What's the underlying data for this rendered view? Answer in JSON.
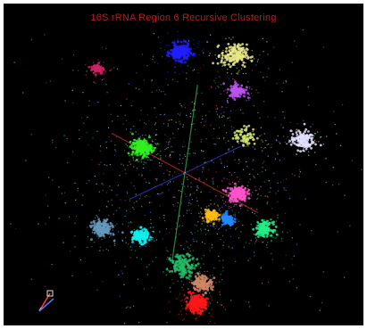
{
  "chart_data": {
    "type": "scatter",
    "title": "16S rRNA Region 6 Recursive Clustering",
    "background": "#000000",
    "title_color": "#c0181a",
    "projection": "3D",
    "axes": [
      {
        "name": "",
        "color": "#d03030"
      },
      {
        "name": "",
        "color": "#40c040"
      },
      {
        "name": "",
        "color": "#3040d0"
      }
    ],
    "xlim": [
      -1,
      1
    ],
    "ylim": [
      -1,
      1
    ],
    "grid": false,
    "legend": "none",
    "series": [
      {
        "color": "#2020ff",
        "x": -0.03,
        "y": 0.82,
        "spread": 0.03,
        "count": 220
      },
      {
        "color": "#e8e888",
        "x": 0.31,
        "y": 0.8,
        "spread": 0.04,
        "count": 170
      },
      {
        "color": "#cc2266",
        "x": -0.55,
        "y": 0.71,
        "spread": 0.02,
        "count": 70
      },
      {
        "color": "#bb55ee",
        "x": 0.33,
        "y": 0.56,
        "spread": 0.025,
        "count": 110
      },
      {
        "color": "#30f020",
        "x": -0.27,
        "y": 0.17,
        "spread": 0.03,
        "count": 190
      },
      {
        "color": "#e0e0ff",
        "x": 0.74,
        "y": 0.22,
        "spread": 0.035,
        "count": 140
      },
      {
        "color": "#d0e070",
        "x": 0.38,
        "y": 0.25,
        "spread": 0.035,
        "count": 70
      },
      {
        "color": "#ff55cc",
        "x": 0.33,
        "y": -0.14,
        "spread": 0.03,
        "count": 150
      },
      {
        "color": "#ffbb10",
        "x": 0.17,
        "y": -0.29,
        "spread": 0.02,
        "count": 110
      },
      {
        "color": "#2288ff",
        "x": 0.27,
        "y": -0.32,
        "spread": 0.02,
        "count": 120
      },
      {
        "color": "#22ee88",
        "x": 0.5,
        "y": -0.38,
        "spread": 0.025,
        "count": 140
      },
      {
        "color": "#6699bb",
        "x": -0.52,
        "y": -0.38,
        "spread": 0.03,
        "count": 150
      },
      {
        "color": "#11eeee",
        "x": -0.28,
        "y": -0.43,
        "spread": 0.025,
        "count": 140
      },
      {
        "color": "#22bb66",
        "x": -0.01,
        "y": -0.63,
        "spread": 0.04,
        "count": 140
      },
      {
        "color": "#cc8866",
        "x": 0.11,
        "y": -0.75,
        "spread": 0.03,
        "count": 130
      },
      {
        "color": "#ff1818",
        "x": 0.07,
        "y": -0.89,
        "spread": 0.03,
        "count": 240
      }
    ],
    "noise": {
      "colors": [
        "#5080ff",
        "#30d0d0",
        "#d060d0",
        "#b0b0e0",
        "#d0d080",
        "#40d040",
        "#e04040",
        "#80c0ff"
      ],
      "count": 900
    }
  }
}
